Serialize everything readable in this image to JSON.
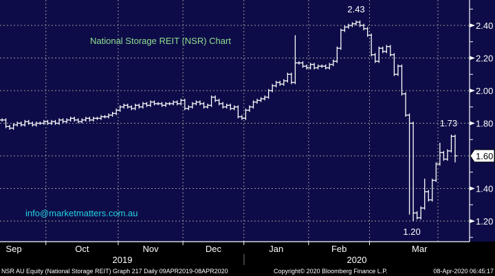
{
  "chart_data": {
    "type": "ohlc-bar",
    "title": "National Storage REIT (NSR) Chart",
    "watermark": "info@marketmatters.com.au",
    "ylim": [
      1.08,
      2.54
    ],
    "yticks": [
      "2.40",
      "2.20",
      "2.00",
      "1.80",
      "1.60",
      "1.40",
      "1.20"
    ],
    "ytick_values": [
      2.4,
      2.2,
      2.0,
      1.8,
      1.6,
      1.4,
      1.2
    ],
    "months": [
      "Sep",
      "Oct",
      "Nov",
      "Dec",
      "Jan",
      "Feb",
      "Mar"
    ],
    "month_start_index": [
      0,
      12,
      31,
      48,
      64,
      81,
      97
    ],
    "years": [
      "2019",
      "2020"
    ],
    "last_price": "1.60",
    "last_price_value": 1.6,
    "annotations": [
      {
        "text": "2.43",
        "index": 93,
        "value": 2.43
      },
      {
        "text": "1.73",
        "index": 118,
        "value": 1.73
      },
      {
        "text": "1.20",
        "index": 108,
        "value": 1.2
      }
    ],
    "closes": [
      1.82,
      1.78,
      1.77,
      1.79,
      1.8,
      1.79,
      1.81,
      1.8,
      1.79,
      1.8,
      1.8,
      1.81,
      1.8,
      1.81,
      1.8,
      1.82,
      1.81,
      1.82,
      1.83,
      1.82,
      1.81,
      1.82,
      1.83,
      1.82,
      1.83,
      1.83,
      1.84,
      1.84,
      1.85,
      1.86,
      1.88,
      1.9,
      1.91,
      1.9,
      1.89,
      1.91,
      1.9,
      1.92,
      1.91,
      1.93,
      1.92,
      1.92,
      1.91,
      1.92,
      1.92,
      1.93,
      1.92,
      1.94,
      1.89,
      1.9,
      1.92,
      1.93,
      1.92,
      1.9,
      1.91,
      1.96,
      1.94,
      1.92,
      1.9,
      1.91,
      1.89,
      1.9,
      1.84,
      1.83,
      1.88,
      1.9,
      1.93,
      1.94,
      1.95,
      1.96,
      2.0,
      2.03,
      2.05,
      2.04,
      2.06,
      2.1,
      2.05,
      2.17,
      2.17,
      2.15,
      2.14,
      2.16,
      2.14,
      2.15,
      2.15,
      2.14,
      2.16,
      2.18,
      2.26,
      2.37,
      2.39,
      2.4,
      2.41,
      2.42,
      2.4,
      2.38,
      2.34,
      2.22,
      2.18,
      2.26,
      2.24,
      2.27,
      2.22,
      2.1,
      2.15,
      1.98,
      1.85,
      1.8,
      1.25,
      1.22,
      1.28,
      1.38,
      1.33,
      1.45,
      1.55,
      1.62,
      1.58,
      1.63,
      1.72,
      1.6
    ],
    "high_overrides": {
      "77": 2.34,
      "93": 2.43,
      "118": 1.73,
      "111": 1.46,
      "115": 1.68
    },
    "low_overrides": {
      "108": 1.2,
      "107": 1.24,
      "119": 1.56
    }
  },
  "footer": {
    "left": "NSR AU Equity (National Storage REIT) Graph 217  Daily 09APR2019-08APR2020",
    "center": "Copyright© 2020 Bloomberg Finance L.P.",
    "right": "08-Apr-2020 06:45:17"
  },
  "colors": {
    "background": "#0e0c48",
    "title": "#8fe08f",
    "watermark": "#22d3e0",
    "grid": "#9a9a9a",
    "bars": "#ffffff"
  }
}
